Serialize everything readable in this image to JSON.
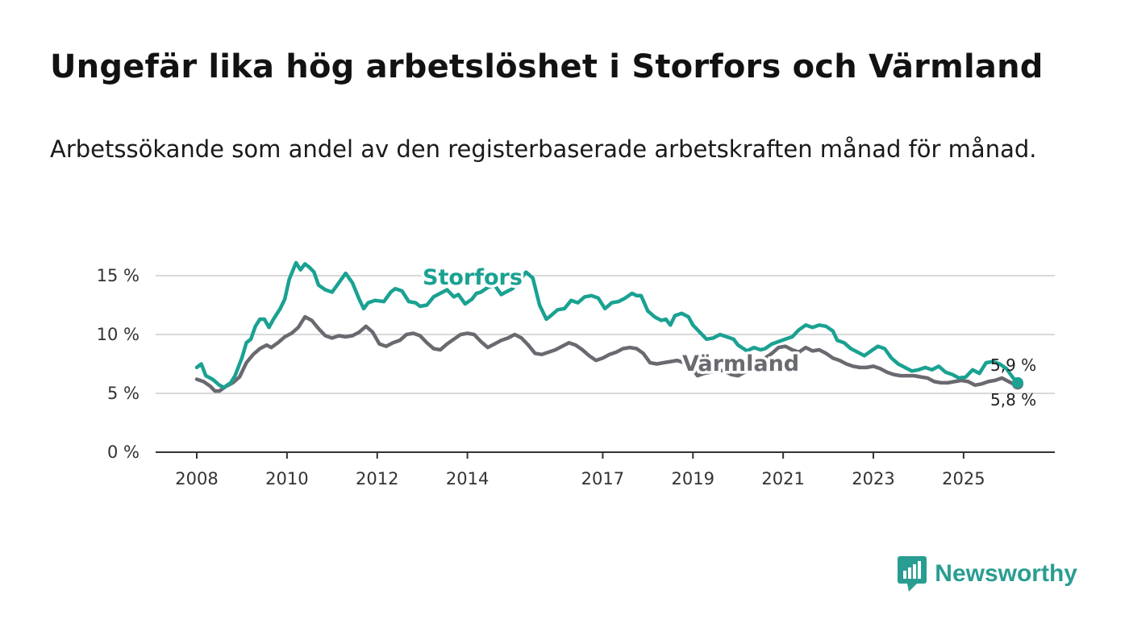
{
  "header": {
    "title": "Ungefär lika hög arbetslöshet i Storfors och Värmland",
    "subtitle": "Arbetssökande som andel av den registerbaserade arbetskraften månad för månad."
  },
  "brand": {
    "name": "Newsworthy",
    "color": "#2a9d92"
  },
  "chart_data": {
    "type": "line",
    "title": "Ungefär lika hög arbetslöshet i Storfors och Värmland",
    "subtitle": "Arbetssökande som andel av den registerbaserade arbetskraften månad för månad.",
    "xlabel": "",
    "ylabel": "",
    "xlim": [
      2008,
      2026.3
    ],
    "ylim": [
      0,
      15
    ],
    "x_ticks": [
      {
        "value": 2008,
        "label": "2008"
      },
      {
        "value": 2010,
        "label": "2010"
      },
      {
        "value": 2012,
        "label": "2012"
      },
      {
        "value": 2014,
        "label": "2014"
      },
      {
        "value": 2017,
        "label": "2017"
      },
      {
        "value": 2019,
        "label": "2019"
      },
      {
        "value": 2021,
        "label": "2021"
      },
      {
        "value": 2023,
        "label": "2023"
      },
      {
        "value": 2025,
        "label": "2025"
      }
    ],
    "y_ticks": [
      {
        "value": 0,
        "label": "0 %"
      },
      {
        "value": 5,
        "label": "5 %"
      },
      {
        "value": 10,
        "label": "10 %"
      },
      {
        "value": 15,
        "label": "15 %"
      }
    ],
    "grid": true,
    "legend": "inline labels",
    "end_labels": [
      {
        "series": "Storfors",
        "label": "5,9 %"
      },
      {
        "series": "Värmland",
        "label": "5,8 %"
      }
    ],
    "series": [
      {
        "name": "Storfors",
        "label": "Storfors",
        "color": "#1aa192",
        "points": [
          [
            2008.0,
            7.2
          ],
          [
            2008.1,
            7.5
          ],
          [
            2008.2,
            6.5
          ],
          [
            2008.35,
            6.2
          ],
          [
            2008.5,
            5.7
          ],
          [
            2008.6,
            5.5
          ],
          [
            2008.75,
            5.9
          ],
          [
            2008.85,
            6.5
          ],
          [
            2009.0,
            8.0
          ],
          [
            2009.1,
            9.3
          ],
          [
            2009.2,
            9.6
          ],
          [
            2009.3,
            10.7
          ],
          [
            2009.4,
            11.3
          ],
          [
            2009.5,
            11.3
          ],
          [
            2009.6,
            10.6
          ],
          [
            2009.7,
            11.3
          ],
          [
            2009.85,
            12.2
          ],
          [
            2009.95,
            13.0
          ],
          [
            2010.05,
            14.7
          ],
          [
            2010.2,
            16.1
          ],
          [
            2010.3,
            15.5
          ],
          [
            2010.4,
            16.0
          ],
          [
            2010.5,
            15.7
          ],
          [
            2010.6,
            15.3
          ],
          [
            2010.7,
            14.2
          ],
          [
            2010.85,
            13.8
          ],
          [
            2011.0,
            13.6
          ],
          [
            2011.15,
            14.4
          ],
          [
            2011.3,
            15.2
          ],
          [
            2011.45,
            14.4
          ],
          [
            2011.6,
            13.0
          ],
          [
            2011.7,
            12.2
          ],
          [
            2011.8,
            12.7
          ],
          [
            2011.95,
            12.9
          ],
          [
            2012.15,
            12.8
          ],
          [
            2012.3,
            13.6
          ],
          [
            2012.4,
            13.9
          ],
          [
            2012.55,
            13.7
          ],
          [
            2012.7,
            12.8
          ],
          [
            2012.85,
            12.7
          ],
          [
            2012.95,
            12.4
          ],
          [
            2013.1,
            12.5
          ],
          [
            2013.25,
            13.2
          ],
          [
            2013.4,
            13.5
          ],
          [
            2013.55,
            13.8
          ],
          [
            2013.7,
            13.2
          ],
          [
            2013.8,
            13.4
          ],
          [
            2013.95,
            12.6
          ],
          [
            2014.1,
            13.0
          ],
          [
            2014.2,
            13.5
          ],
          [
            2014.3,
            13.6
          ],
          [
            2014.45,
            14.0
          ],
          [
            2014.6,
            14.2
          ],
          [
            2014.75,
            13.4
          ],
          [
            2014.85,
            13.6
          ],
          [
            2015.0,
            13.9
          ],
          [
            2015.15,
            14.6
          ],
          [
            2015.3,
            15.3
          ],
          [
            2015.45,
            14.8
          ],
          [
            2015.6,
            12.5
          ],
          [
            2015.75,
            11.3
          ],
          [
            2015.85,
            11.6
          ],
          [
            2016.0,
            12.1
          ],
          [
            2016.15,
            12.2
          ],
          [
            2016.3,
            12.9
          ],
          [
            2016.45,
            12.7
          ],
          [
            2016.6,
            13.2
          ],
          [
            2016.75,
            13.3
          ],
          [
            2016.9,
            13.1
          ],
          [
            2017.05,
            12.2
          ],
          [
            2017.2,
            12.7
          ],
          [
            2017.35,
            12.8
          ],
          [
            2017.5,
            13.1
          ],
          [
            2017.65,
            13.5
          ],
          [
            2017.75,
            13.3
          ],
          [
            2017.85,
            13.3
          ],
          [
            2018.0,
            12.0
          ],
          [
            2018.15,
            11.5
          ],
          [
            2018.3,
            11.2
          ],
          [
            2018.4,
            11.3
          ],
          [
            2018.5,
            10.8
          ],
          [
            2018.6,
            11.6
          ],
          [
            2018.75,
            11.8
          ],
          [
            2018.9,
            11.5
          ],
          [
            2019.0,
            10.8
          ],
          [
            2019.15,
            10.2
          ],
          [
            2019.3,
            9.6
          ],
          [
            2019.45,
            9.7
          ],
          [
            2019.6,
            10.0
          ],
          [
            2019.75,
            9.8
          ],
          [
            2019.9,
            9.6
          ],
          [
            2020.0,
            9.1
          ],
          [
            2020.2,
            8.6
          ],
          [
            2020.35,
            8.9
          ],
          [
            2020.5,
            8.7
          ],
          [
            2020.6,
            8.8
          ],
          [
            2020.75,
            9.2
          ],
          [
            2020.9,
            9.4
          ],
          [
            2021.05,
            9.6
          ],
          [
            2021.2,
            9.8
          ],
          [
            2021.35,
            10.4
          ],
          [
            2021.5,
            10.8
          ],
          [
            2021.65,
            10.6
          ],
          [
            2021.8,
            10.8
          ],
          [
            2021.95,
            10.7
          ],
          [
            2022.1,
            10.3
          ],
          [
            2022.2,
            9.5
          ],
          [
            2022.35,
            9.3
          ],
          [
            2022.5,
            8.8
          ],
          [
            2022.65,
            8.5
          ],
          [
            2022.8,
            8.2
          ],
          [
            2022.95,
            8.6
          ],
          [
            2023.1,
            9.0
          ],
          [
            2023.25,
            8.8
          ],
          [
            2023.4,
            8.0
          ],
          [
            2023.55,
            7.5
          ],
          [
            2023.7,
            7.2
          ],
          [
            2023.85,
            6.9
          ],
          [
            2024.0,
            7.0
          ],
          [
            2024.15,
            7.2
          ],
          [
            2024.3,
            7.0
          ],
          [
            2024.45,
            7.3
          ],
          [
            2024.6,
            6.8
          ],
          [
            2024.75,
            6.6
          ],
          [
            2024.9,
            6.3
          ],
          [
            2025.05,
            6.4
          ],
          [
            2025.2,
            7.0
          ],
          [
            2025.35,
            6.7
          ],
          [
            2025.5,
            7.6
          ],
          [
            2025.65,
            7.7
          ],
          [
            2025.8,
            7.5
          ],
          [
            2025.95,
            7.1
          ],
          [
            2026.1,
            6.3
          ],
          [
            2026.2,
            5.9
          ]
        ]
      },
      {
        "name": "Värmland",
        "label": "Värmland",
        "color": "#6b6970",
        "points": [
          [
            2008.0,
            6.2
          ],
          [
            2008.15,
            6.0
          ],
          [
            2008.3,
            5.6
          ],
          [
            2008.4,
            5.2
          ],
          [
            2008.5,
            5.2
          ],
          [
            2008.65,
            5.6
          ],
          [
            2008.8,
            5.9
          ],
          [
            2008.95,
            6.4
          ],
          [
            2009.1,
            7.6
          ],
          [
            2009.25,
            8.3
          ],
          [
            2009.4,
            8.8
          ],
          [
            2009.55,
            9.1
          ],
          [
            2009.65,
            8.9
          ],
          [
            2009.8,
            9.3
          ],
          [
            2009.95,
            9.8
          ],
          [
            2010.1,
            10.1
          ],
          [
            2010.25,
            10.6
          ],
          [
            2010.4,
            11.5
          ],
          [
            2010.55,
            11.2
          ],
          [
            2010.7,
            10.5
          ],
          [
            2010.85,
            9.9
          ],
          [
            2011.0,
            9.7
          ],
          [
            2011.15,
            9.9
          ],
          [
            2011.3,
            9.8
          ],
          [
            2011.45,
            9.9
          ],
          [
            2011.6,
            10.2
          ],
          [
            2011.75,
            10.7
          ],
          [
            2011.9,
            10.2
          ],
          [
            2012.05,
            9.2
          ],
          [
            2012.2,
            9.0
          ],
          [
            2012.35,
            9.3
          ],
          [
            2012.5,
            9.5
          ],
          [
            2012.65,
            10.0
          ],
          [
            2012.8,
            10.1
          ],
          [
            2012.95,
            9.9
          ],
          [
            2013.1,
            9.3
          ],
          [
            2013.25,
            8.8
          ],
          [
            2013.4,
            8.7
          ],
          [
            2013.55,
            9.2
          ],
          [
            2013.7,
            9.6
          ],
          [
            2013.85,
            10.0
          ],
          [
            2014.0,
            10.1
          ],
          [
            2014.15,
            10.0
          ],
          [
            2014.3,
            9.4
          ],
          [
            2014.45,
            8.9
          ],
          [
            2014.6,
            9.2
          ],
          [
            2014.75,
            9.5
          ],
          [
            2014.9,
            9.7
          ],
          [
            2015.05,
            10.0
          ],
          [
            2015.2,
            9.7
          ],
          [
            2015.35,
            9.1
          ],
          [
            2015.5,
            8.4
          ],
          [
            2015.65,
            8.3
          ],
          [
            2015.8,
            8.5
          ],
          [
            2015.95,
            8.7
          ],
          [
            2016.1,
            9.0
          ],
          [
            2016.25,
            9.3
          ],
          [
            2016.4,
            9.1
          ],
          [
            2016.55,
            8.7
          ],
          [
            2016.7,
            8.2
          ],
          [
            2016.85,
            7.8
          ],
          [
            2017.0,
            8.0
          ],
          [
            2017.15,
            8.3
          ],
          [
            2017.3,
            8.5
          ],
          [
            2017.45,
            8.8
          ],
          [
            2017.6,
            8.9
          ],
          [
            2017.75,
            8.8
          ],
          [
            2017.9,
            8.4
          ],
          [
            2018.05,
            7.6
          ],
          [
            2018.2,
            7.5
          ],
          [
            2018.35,
            7.6
          ],
          [
            2018.5,
            7.7
          ],
          [
            2018.65,
            7.8
          ],
          [
            2018.8,
            7.6
          ],
          [
            2018.95,
            7.3
          ],
          [
            2019.1,
            6.5
          ],
          [
            2019.25,
            6.7
          ],
          [
            2019.4,
            6.8
          ],
          [
            2019.55,
            7.0
          ],
          [
            2019.7,
            6.9
          ],
          [
            2019.85,
            6.6
          ],
          [
            2020.0,
            6.5
          ],
          [
            2020.15,
            6.8
          ],
          [
            2020.3,
            7.2
          ],
          [
            2020.45,
            7.6
          ],
          [
            2020.6,
            8.0
          ],
          [
            2020.75,
            8.4
          ],
          [
            2020.9,
            8.9
          ],
          [
            2021.05,
            9.0
          ],
          [
            2021.2,
            8.7
          ],
          [
            2021.35,
            8.5
          ],
          [
            2021.5,
            8.9
          ],
          [
            2021.65,
            8.6
          ],
          [
            2021.8,
            8.7
          ],
          [
            2021.95,
            8.4
          ],
          [
            2022.1,
            8.0
          ],
          [
            2022.25,
            7.8
          ],
          [
            2022.4,
            7.5
          ],
          [
            2022.55,
            7.3
          ],
          [
            2022.7,
            7.2
          ],
          [
            2022.85,
            7.2
          ],
          [
            2023.0,
            7.3
          ],
          [
            2023.15,
            7.1
          ],
          [
            2023.3,
            6.8
          ],
          [
            2023.45,
            6.6
          ],
          [
            2023.6,
            6.5
          ],
          [
            2023.75,
            6.5
          ],
          [
            2023.9,
            6.5
          ],
          [
            2024.05,
            6.4
          ],
          [
            2024.2,
            6.3
          ],
          [
            2024.35,
            6.0
          ],
          [
            2024.5,
            5.9
          ],
          [
            2024.65,
            5.9
          ],
          [
            2024.8,
            6.0
          ],
          [
            2024.95,
            6.1
          ],
          [
            2025.1,
            6.0
          ],
          [
            2025.25,
            5.7
          ],
          [
            2025.4,
            5.8
          ],
          [
            2025.55,
            6.0
          ],
          [
            2025.7,
            6.1
          ],
          [
            2025.85,
            6.3
          ],
          [
            2026.0,
            6.0
          ],
          [
            2026.1,
            5.8
          ],
          [
            2026.2,
            5.8
          ]
        ]
      }
    ]
  }
}
